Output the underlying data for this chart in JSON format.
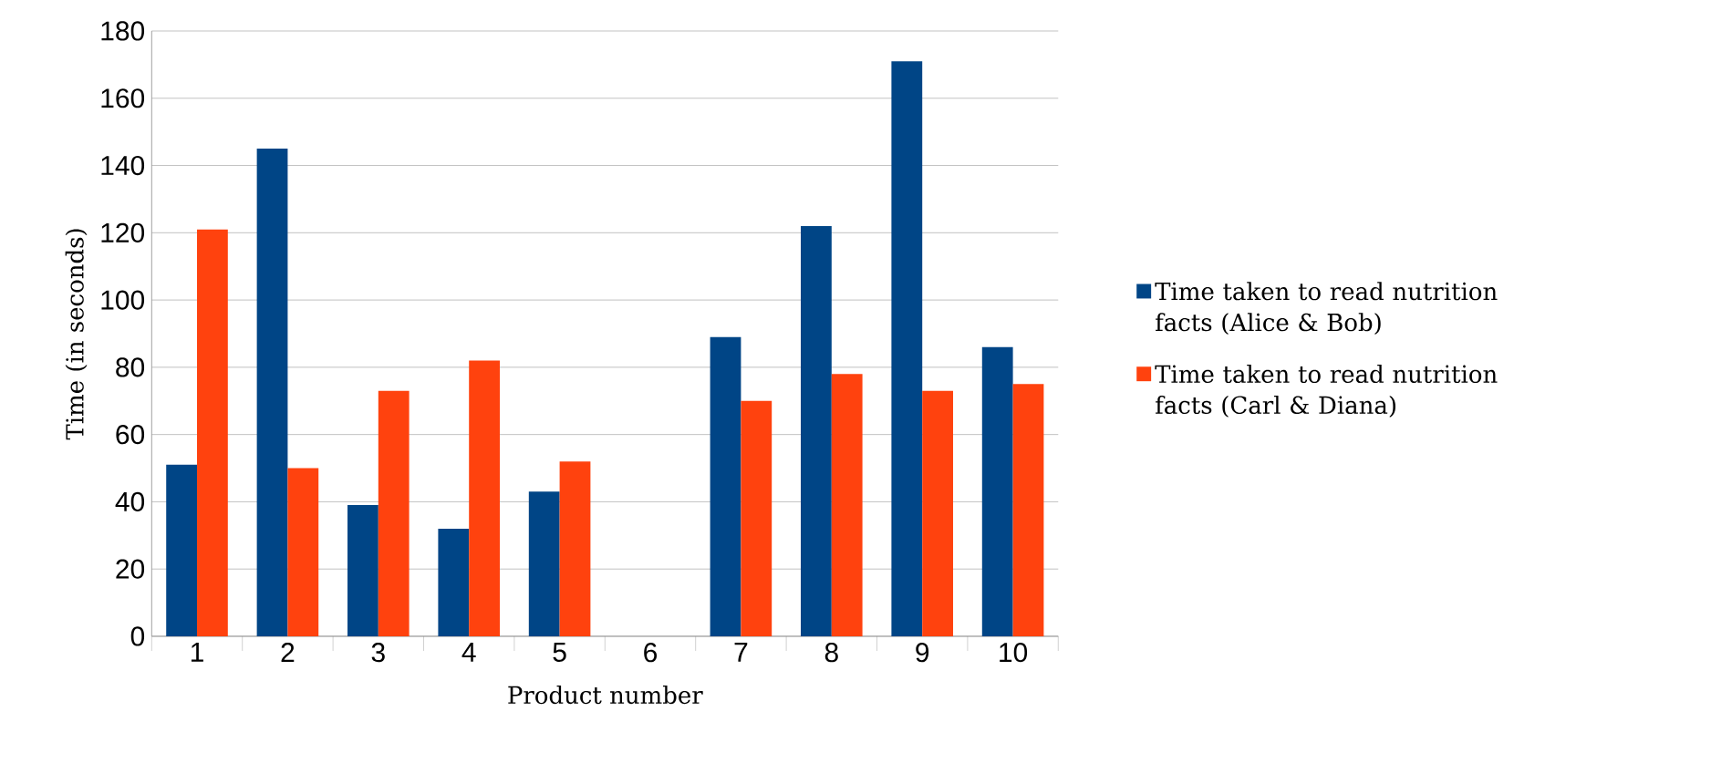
{
  "chart_data": {
    "type": "bar",
    "xlabel": "Product number",
    "ylabel": "Time (in seconds)",
    "categories": [
      "1",
      "2",
      "3",
      "4",
      "5",
      "6",
      "7",
      "8",
      "9",
      "10"
    ],
    "series": [
      {
        "name": "Time taken to read nutrition facts (Alice & Bob)",
        "color": "#004586",
        "values": [
          51,
          145,
          39,
          32,
          43,
          null,
          89,
          122,
          171,
          86
        ]
      },
      {
        "name": "Time taken to read nutrition facts (Carl & Diana)",
        "color": "#ff420e",
        "values": [
          121,
          50,
          73,
          82,
          52,
          null,
          70,
          78,
          73,
          75
        ]
      }
    ],
    "ylim": [
      0,
      180
    ],
    "yticks": [
      0,
      20,
      40,
      60,
      80,
      100,
      120,
      140,
      160,
      180
    ],
    "grid": "y",
    "legend": "right"
  }
}
